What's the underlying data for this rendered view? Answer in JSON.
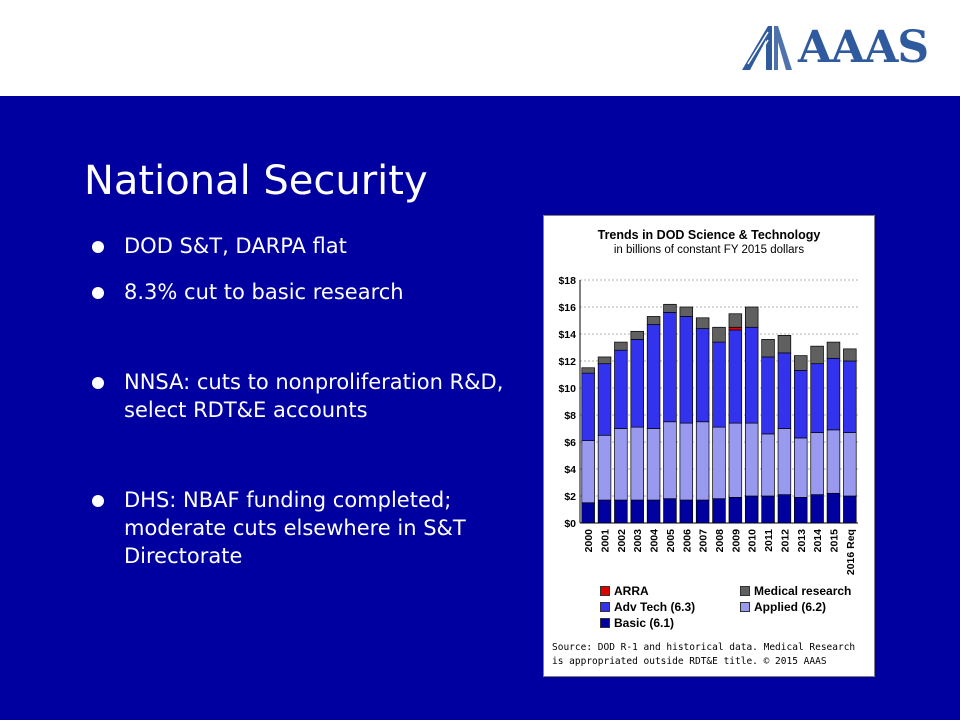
{
  "logo": {
    "text": "AAAS",
    "color": "#2f5a9e"
  },
  "slide": {
    "title": "National Security",
    "background": "#0000a0",
    "bullets": [
      "DOD S&T, DARPA flat",
      "8.3% cut to basic research",
      "NNSA: cuts to nonproliferation R&D, select RDT&E accounts",
      "DHS: NBAF funding completed; moderate cuts elsewhere in S&T Directorate"
    ]
  },
  "chart_data": {
    "type": "bar",
    "stacked": true,
    "title": "Trends in DOD Science & Technology",
    "subtitle": "in billions of constant FY 2015 dollars",
    "categories": [
      "2000",
      "2001",
      "2002",
      "2003",
      "2004",
      "2005",
      "2006",
      "2007",
      "2008",
      "2009",
      "2010",
      "2011",
      "2012",
      "2013",
      "2014",
      "2015",
      "2016 Req"
    ],
    "ylim": [
      0,
      18
    ],
    "yticks": [
      0,
      2,
      4,
      6,
      8,
      10,
      12,
      14,
      16,
      18
    ],
    "ytick_labels": [
      "$0",
      "$2",
      "$4",
      "$6",
      "$8",
      "$10",
      "$12",
      "$14",
      "$16",
      "$18"
    ],
    "grid": true,
    "series": [
      {
        "name": "Basic (6.1)",
        "color": "#0000a0",
        "values": [
          1.5,
          1.7,
          1.7,
          1.7,
          1.7,
          1.8,
          1.7,
          1.7,
          1.8,
          1.9,
          2.0,
          2.0,
          2.1,
          1.9,
          2.1,
          2.2,
          2.0
        ]
      },
      {
        "name": "Applied (6.2)",
        "color": "#9999f0",
        "values": [
          4.6,
          4.8,
          5.3,
          5.4,
          5.3,
          5.7,
          5.7,
          5.8,
          5.3,
          5.5,
          5.4,
          4.6,
          4.9,
          4.4,
          4.6,
          4.7,
          4.7
        ]
      },
      {
        "name": "Adv Tech (6.3)",
        "color": "#3333ee",
        "values": [
          5.0,
          5.3,
          5.8,
          6.5,
          7.7,
          8.1,
          7.9,
          6.9,
          6.3,
          6.9,
          7.1,
          5.7,
          5.6,
          5.0,
          5.1,
          5.3,
          5.3
        ]
      },
      {
        "name": "ARRA",
        "color": "#dd0000",
        "values": [
          0,
          0,
          0,
          0,
          0,
          0,
          0,
          0,
          0,
          0.2,
          0,
          0,
          0,
          0,
          0,
          0,
          0
        ]
      },
      {
        "name": "Medical research",
        "color": "#606060",
        "values": [
          0.4,
          0.5,
          0.6,
          0.6,
          0.6,
          0.6,
          0.7,
          0.8,
          1.1,
          1.0,
          1.5,
          1.3,
          1.3,
          1.1,
          1.3,
          1.2,
          0.9
        ]
      }
    ],
    "legend_order": [
      "ARRA",
      "Medical research",
      "Adv Tech (6.3)",
      "Applied (6.2)",
      "Basic (6.1)"
    ],
    "source": "Source: DOD R-1 and historical data. Medical Research is appropriated outside RDT&E title. © 2015 AAAS"
  }
}
